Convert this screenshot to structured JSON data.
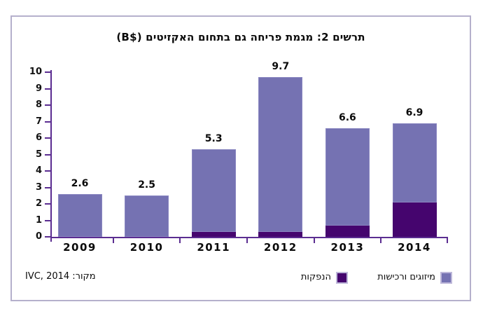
{
  "title": "תרשים 2: מגמת פריחה גם בתחום האקזיטים ($B)",
  "source_note": "מקור: IVC, 2014",
  "legend": {
    "items": [
      {
        "label": "מיזוגים ורכישות",
        "color": "#7572b2"
      },
      {
        "label": "הנפקות",
        "color": "#45056e"
      }
    ]
  },
  "chart_data": {
    "type": "bar",
    "stacked": true,
    "title": "תרשים 2: מגמת פריחה גם בתחום האקזיטים ($B)",
    "categories": [
      "2009",
      "2010",
      "2011",
      "2012",
      "2013",
      "2014"
    ],
    "series": [
      {
        "name": "הנפקות",
        "color": "#45056e",
        "values": [
          0,
          0,
          0.3,
          0.3,
          0.7,
          2.1
        ]
      },
      {
        "name": "מיזוגים ורכישות",
        "color": "#7572b2",
        "values": [
          2.6,
          2.5,
          5.0,
          9.4,
          5.9,
          4.8
        ]
      }
    ],
    "totals": [
      2.6,
      2.5,
      5.3,
      9.7,
      6.6,
      6.9
    ],
    "total_labels": [
      "2.6",
      "2.5",
      "5.3",
      "9.7",
      "6.6",
      "6.9"
    ],
    "xlabel": "",
    "ylabel": "",
    "ylim": [
      0,
      10
    ],
    "yticks": [
      0,
      1,
      2,
      3,
      4,
      5,
      6,
      7,
      8,
      9,
      10
    ],
    "grid": false,
    "legend_position": "bottom-right",
    "axis_color": "#5b2d91",
    "frame_border_color": "#b5b0cc",
    "bar_edge_color": "#8a87c1",
    "units": "$B"
  }
}
